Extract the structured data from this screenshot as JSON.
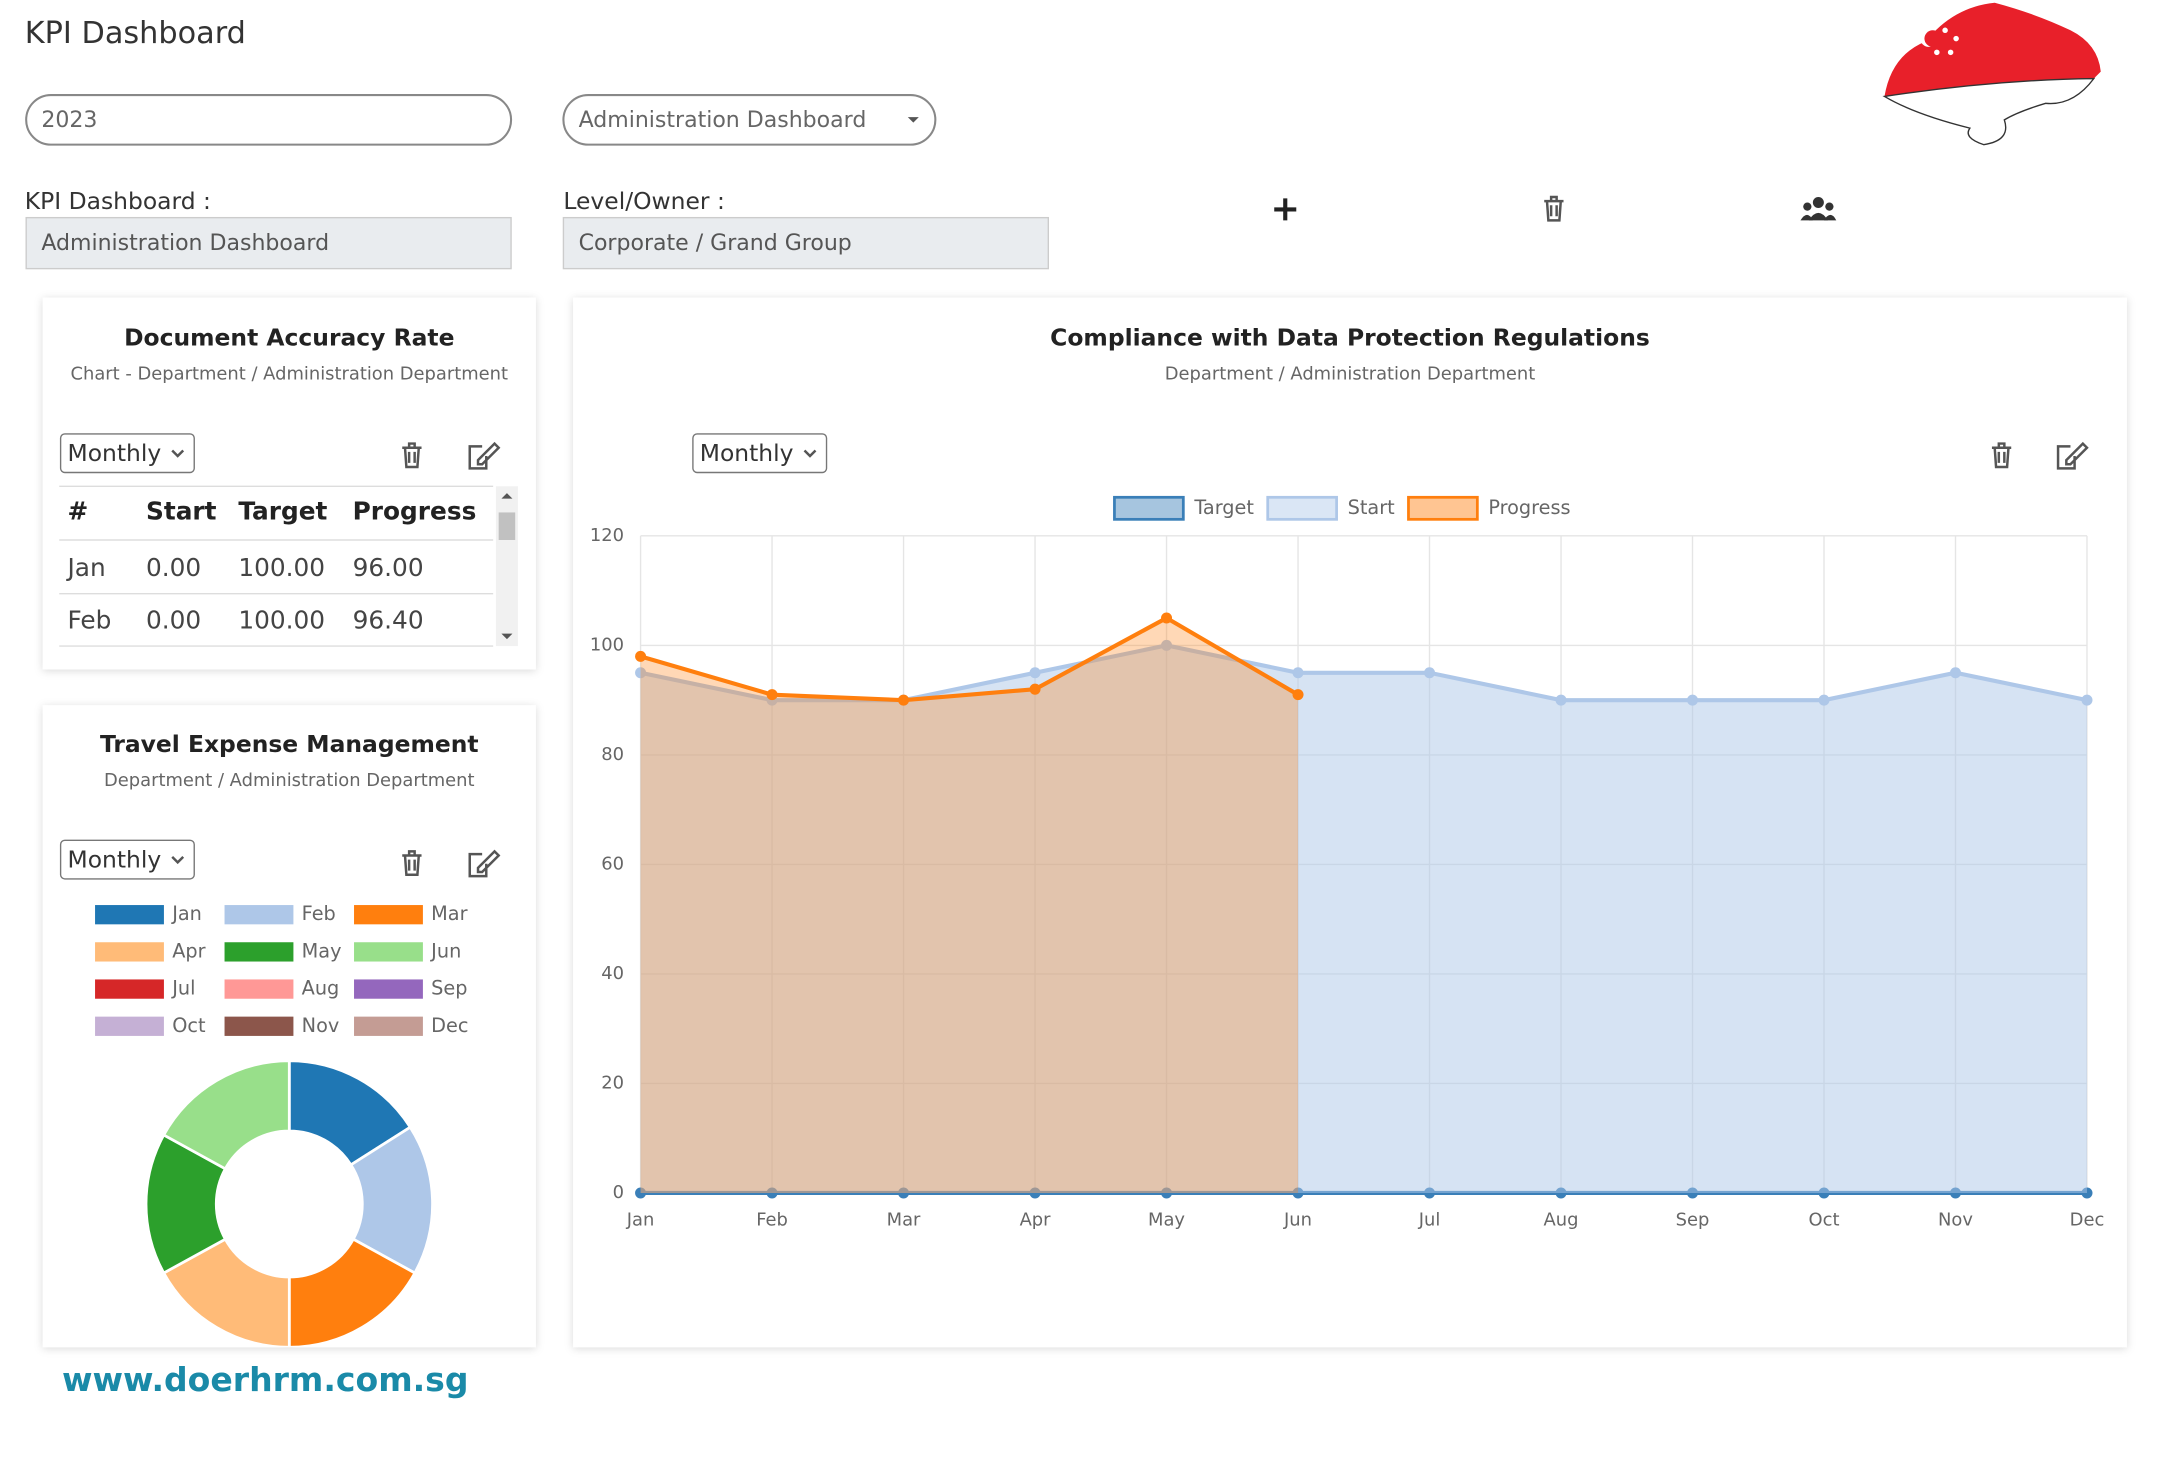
{
  "header": {
    "title": "KPI Dashboard",
    "year": "2023",
    "dashboard_select": "Administration Dashboard",
    "website": "www.doerhrm.com.sg"
  },
  "fields": {
    "kpi_label": "KPI Dashboard :",
    "kpi_value": "Administration Dashboard",
    "level_label": "Level/Owner :",
    "level_value": "Corporate / Grand Group"
  },
  "table_card": {
    "title": "Document Accuracy Rate",
    "subtitle": "Chart - Department / Administration Department",
    "period": "Monthly",
    "columns": [
      "#",
      "Start",
      "Target",
      "Progress"
    ],
    "rows": [
      [
        "Jan",
        "0.00",
        "100.00",
        "96.00"
      ],
      [
        "Feb",
        "0.00",
        "100.00",
        "96.40"
      ]
    ]
  },
  "chart_data": [
    {
      "type": "donut",
      "title": "Travel Expense Management",
      "subtitle": "Department / Administration Department",
      "period": "Monthly",
      "categories": [
        "Jan",
        "Feb",
        "Mar",
        "Apr",
        "May",
        "Jun",
        "Jul",
        "Aug",
        "Sep",
        "Oct",
        "Nov",
        "Dec"
      ],
      "values": [
        16,
        17,
        17,
        17,
        16,
        17,
        0,
        0,
        0,
        0,
        0,
        0
      ],
      "colors": [
        "#1f77b4",
        "#aec7e8",
        "#ff7f0e",
        "#ffbb78",
        "#2ca02c",
        "#98df8a",
        "#d62728",
        "#ff9896",
        "#9467bd",
        "#c5b0d5",
        "#8c564b",
        "#c49c94"
      ]
    },
    {
      "type": "line",
      "title": "Compliance with Data Protection Regulations",
      "subtitle": "Department / Administration Department",
      "period": "Monthly",
      "categories": [
        "Jan",
        "Feb",
        "Mar",
        "Apr",
        "May",
        "Jun",
        "Jul",
        "Aug",
        "Sep",
        "Oct",
        "Nov",
        "Dec"
      ],
      "series": [
        {
          "name": "Target",
          "color": "#3a7fb8",
          "values": [
            0,
            0,
            0,
            0,
            0,
            0,
            0,
            0,
            0,
            0,
            0,
            0
          ]
        },
        {
          "name": "Start",
          "color": "#aec7e8",
          "values": [
            95,
            90,
            90,
            95,
            100,
            95,
            95,
            90,
            90,
            90,
            95,
            90
          ]
        },
        {
          "name": "Progress",
          "color": "#ff7f0e",
          "values": [
            98,
            91,
            90,
            92,
            105,
            91,
            null,
            null,
            null,
            null,
            null,
            null
          ]
        }
      ],
      "ylim": [
        0,
        120
      ],
      "yticks": [
        0,
        20,
        40,
        60,
        80,
        100,
        120
      ],
      "grid": true,
      "legend": "top"
    }
  ]
}
